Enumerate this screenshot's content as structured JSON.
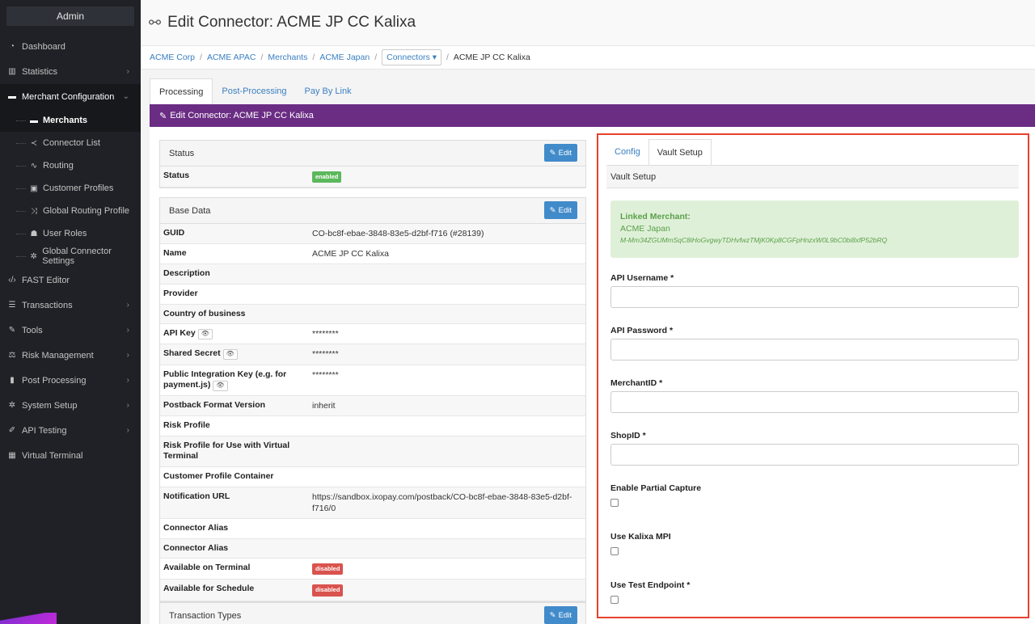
{
  "sidebar": {
    "header": "Admin",
    "items": [
      {
        "label": "Dashboard",
        "icon": "tachometer-icon",
        "chevron": ""
      },
      {
        "label": "Statistics",
        "icon": "bar-chart-icon",
        "chevron": "›"
      },
      {
        "label": "Merchant Configuration",
        "icon": "briefcase-icon",
        "chevron": "⌄"
      }
    ],
    "subitems": [
      {
        "label": "Merchants",
        "icon": "briefcase-icon"
      },
      {
        "label": "Connector List",
        "icon": "share-icon"
      },
      {
        "label": "Routing",
        "icon": "routing-icon"
      },
      {
        "label": "Customer Profiles",
        "icon": "id-card-icon"
      },
      {
        "label": "Global Routing Profile",
        "icon": "shuffle-icon"
      },
      {
        "label": "User Roles",
        "icon": "users-icon"
      },
      {
        "label": "Global Connector Settings",
        "icon": "gear-icon"
      }
    ],
    "items2": [
      {
        "label": "FAST Editor",
        "icon": "code-icon",
        "chevron": ""
      },
      {
        "label": "Transactions",
        "icon": "list-icon",
        "chevron": "›"
      },
      {
        "label": "Tools",
        "icon": "wrench-icon",
        "chevron": "›"
      },
      {
        "label": "Risk Management",
        "icon": "balance-scale-icon",
        "chevron": "›"
      },
      {
        "label": "Post Processing",
        "icon": "file-icon",
        "chevron": "›"
      },
      {
        "label": "System Setup",
        "icon": "cog-icon",
        "chevron": "›"
      },
      {
        "label": "API Testing",
        "icon": "flask-icon",
        "chevron": "›"
      },
      {
        "label": "Virtual Terminal",
        "icon": "calculator-icon",
        "chevron": ""
      }
    ]
  },
  "header": {
    "title": "Edit Connector: ACME JP CC Kalixa"
  },
  "breadcrumb": {
    "items": [
      "ACME Corp",
      "ACME APAC",
      "Merchants",
      "ACME Japan"
    ],
    "dropdown": "Connectors ▾",
    "current": "ACME JP CC Kalixa"
  },
  "tabs": [
    "Processing",
    "Post-Processing",
    "Pay By Link"
  ],
  "section_title": "Edit Connector: ACME JP CC Kalixa",
  "status_panel": {
    "title": "Status",
    "edit": "Edit",
    "rows": [
      {
        "k": "Status",
        "badge": "enabled"
      }
    ]
  },
  "base_panel": {
    "title": "Base Data",
    "edit": "Edit",
    "rows": [
      {
        "k": "GUID",
        "v": "CO-bc8f-ebae-3848-83e5-d2bf-f716 (#28139)"
      },
      {
        "k": "Name",
        "v": "ACME JP CC Kalixa"
      },
      {
        "k": "Description",
        "v": ""
      },
      {
        "k": "Provider",
        "v": ""
      },
      {
        "k": "Country of business",
        "v": ""
      },
      {
        "k": "API Key",
        "v": "********",
        "eye": "👁"
      },
      {
        "k": "Shared Secret",
        "v": "********",
        "eye": "👁"
      },
      {
        "k": "Public Integration Key (e.g. for payment.js)",
        "v": "********",
        "eye": "👁"
      },
      {
        "k": "Postback Format Version",
        "v": "inherit"
      },
      {
        "k": "Risk Profile",
        "v": ""
      },
      {
        "k": "Risk Profile for Use with Virtual Terminal",
        "v": ""
      },
      {
        "k": "Customer Profile Container",
        "v": ""
      },
      {
        "k": "Notification URL",
        "v": "https://sandbox.ixopay.com/postback/CO-bc8f-ebae-3848-83e5-d2bf-f716/0"
      },
      {
        "k": "Connector Alias",
        "v": ""
      },
      {
        "k": "Connector Alias",
        "v": ""
      },
      {
        "k": "Available on Terminal",
        "badge": "disabled"
      },
      {
        "k": "Available for Schedule",
        "badge": "disabled"
      }
    ]
  },
  "tx_panel": {
    "title": "Transaction Types",
    "edit": "Edit"
  },
  "right": {
    "tabs": [
      "Config",
      "Vault Setup"
    ],
    "vault_title": "Vault Setup",
    "alert": {
      "title": "Linked Merchant:",
      "name": "ACME Japan",
      "id": "M-Mm34ZGUMmSqC8iHoGvgwyTDHvfwzTMjK0Kp8CGFpHnzxW0L9bC0bi8xfP52bRQ"
    },
    "fields": [
      {
        "label": "API Username *",
        "value": ""
      },
      {
        "label": "API Password *",
        "value": ""
      },
      {
        "label": "MerchantID *",
        "value": ""
      },
      {
        "label": "ShopID *",
        "value": ""
      }
    ],
    "checks": [
      "Enable Partial Capture",
      "Use Kalixa MPI",
      "Use Test Endpoint *"
    ]
  }
}
